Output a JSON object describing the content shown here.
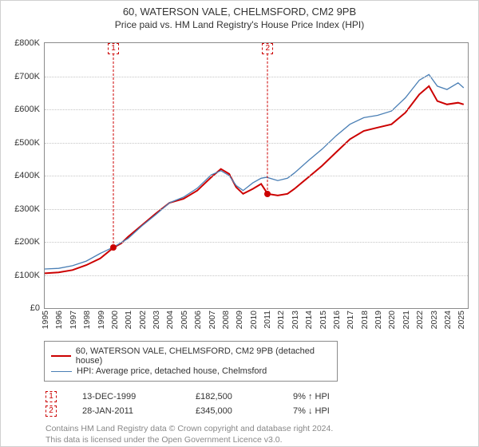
{
  "title_line1": "60, WATERSON VALE, CHELMSFORD, CM2 9PB",
  "title_line2": "Price paid vs. HM Land Registry's House Price Index (HPI)",
  "chart": {
    "type": "line",
    "background_color": "#ffffff",
    "plot_border_color": "#8b8b8b",
    "grid_color": "#c5c5c5",
    "font_family": "Arial",
    "title_fontsize": 13,
    "label_fontsize": 11,
    "tick_fontsize": 10.5,
    "ylim": [
      0,
      800000
    ],
    "ytick_step": 100000,
    "y_ticks": [
      {
        "v": 0,
        "label": "£0"
      },
      {
        "v": 100000,
        "label": "£100K"
      },
      {
        "v": 200000,
        "label": "£200K"
      },
      {
        "v": 300000,
        "label": "£300K"
      },
      {
        "v": 400000,
        "label": "£400K"
      },
      {
        "v": 500000,
        "label": "£500K"
      },
      {
        "v": 600000,
        "label": "£600K"
      },
      {
        "v": 700000,
        "label": "£700K"
      },
      {
        "v": 800000,
        "label": "£800K"
      }
    ],
    "xlim": [
      1995,
      2025.5
    ],
    "x_ticks": [
      1995,
      1996,
      1997,
      1998,
      1999,
      2000,
      2001,
      2002,
      2003,
      2004,
      2005,
      2006,
      2007,
      2008,
      2009,
      2010,
      2011,
      2012,
      2013,
      2014,
      2015,
      2016,
      2017,
      2018,
      2019,
      2020,
      2021,
      2022,
      2023,
      2024,
      2025
    ],
    "series": [
      {
        "name": "60, WATERSON VALE, CHELMSFORD, CM2 9PB (detached house)",
        "color": "#cc0000",
        "line_width": 2,
        "data": [
          [
            1995,
            105000
          ],
          [
            1996,
            108000
          ],
          [
            1997,
            115000
          ],
          [
            1998,
            130000
          ],
          [
            1999,
            150000
          ],
          [
            1999.95,
            182500
          ],
          [
            2000.5,
            195000
          ],
          [
            2001,
            215000
          ],
          [
            2002,
            250000
          ],
          [
            2003,
            285000
          ],
          [
            2004,
            318000
          ],
          [
            2005,
            330000
          ],
          [
            2006,
            355000
          ],
          [
            2007,
            395000
          ],
          [
            2007.7,
            420000
          ],
          [
            2008.3,
            405000
          ],
          [
            2008.8,
            365000
          ],
          [
            2009.3,
            345000
          ],
          [
            2010,
            360000
          ],
          [
            2010.6,
            375000
          ],
          [
            2011.07,
            345000
          ],
          [
            2011.8,
            340000
          ],
          [
            2012.5,
            345000
          ],
          [
            2013,
            360000
          ],
          [
            2014,
            395000
          ],
          [
            2015,
            430000
          ],
          [
            2016,
            470000
          ],
          [
            2017,
            510000
          ],
          [
            2018,
            535000
          ],
          [
            2019,
            545000
          ],
          [
            2020,
            555000
          ],
          [
            2021,
            590000
          ],
          [
            2022,
            645000
          ],
          [
            2022.7,
            670000
          ],
          [
            2023.3,
            625000
          ],
          [
            2024,
            615000
          ],
          [
            2024.8,
            620000
          ],
          [
            2025.2,
            615000
          ]
        ]
      },
      {
        "name": "HPI: Average price, detached house, Chelmsford",
        "color": "#4a7fb5",
        "line_width": 1.3,
        "data": [
          [
            1995,
            118000
          ],
          [
            1996,
            120000
          ],
          [
            1997,
            128000
          ],
          [
            1998,
            142000
          ],
          [
            1999,
            165000
          ],
          [
            2000,
            185000
          ],
          [
            2001,
            210000
          ],
          [
            2002,
            248000
          ],
          [
            2003,
            282000
          ],
          [
            2004,
            318000
          ],
          [
            2005,
            335000
          ],
          [
            2006,
            362000
          ],
          [
            2007,
            402000
          ],
          [
            2007.7,
            415000
          ],
          [
            2008.3,
            400000
          ],
          [
            2008.8,
            370000
          ],
          [
            2009.3,
            355000
          ],
          [
            2010,
            378000
          ],
          [
            2010.6,
            392000
          ],
          [
            2011,
            395000
          ],
          [
            2011.8,
            385000
          ],
          [
            2012.5,
            392000
          ],
          [
            2013,
            408000
          ],
          [
            2014,
            445000
          ],
          [
            2015,
            480000
          ],
          [
            2016,
            520000
          ],
          [
            2017,
            555000
          ],
          [
            2018,
            575000
          ],
          [
            2019,
            582000
          ],
          [
            2020,
            595000
          ],
          [
            2021,
            635000
          ],
          [
            2022,
            688000
          ],
          [
            2022.7,
            705000
          ],
          [
            2023.3,
            670000
          ],
          [
            2024,
            660000
          ],
          [
            2024.8,
            680000
          ],
          [
            2025.2,
            665000
          ]
        ]
      }
    ],
    "sale_markers": [
      {
        "n": "1",
        "x": 1999.95,
        "y": 182500
      },
      {
        "n": "2",
        "x": 2011.07,
        "y": 345000
      }
    ]
  },
  "legend": {
    "border_color": "#8b8b8b",
    "items": [
      {
        "color": "#cc0000",
        "width": 2,
        "label": "60, WATERSON VALE, CHELMSFORD, CM2 9PB (detached house)"
      },
      {
        "color": "#4a7fb5",
        "width": 1.3,
        "label": "HPI: Average price, detached house, Chelmsford"
      }
    ]
  },
  "sales": [
    {
      "n": "1",
      "date": "13-DEC-1999",
      "price": "£182,500",
      "delta": "9% ↑ HPI",
      "arrow": "↑"
    },
    {
      "n": "2",
      "date": "28-JAN-2011",
      "price": "£345,000",
      "delta": "7% ↓ HPI",
      "arrow": "↓"
    }
  ],
  "footer_line1": "Contains HM Land Registry data © Crown copyright and database right 2024.",
  "footer_line2": "This data is licensed under the Open Government Licence v3.0."
}
